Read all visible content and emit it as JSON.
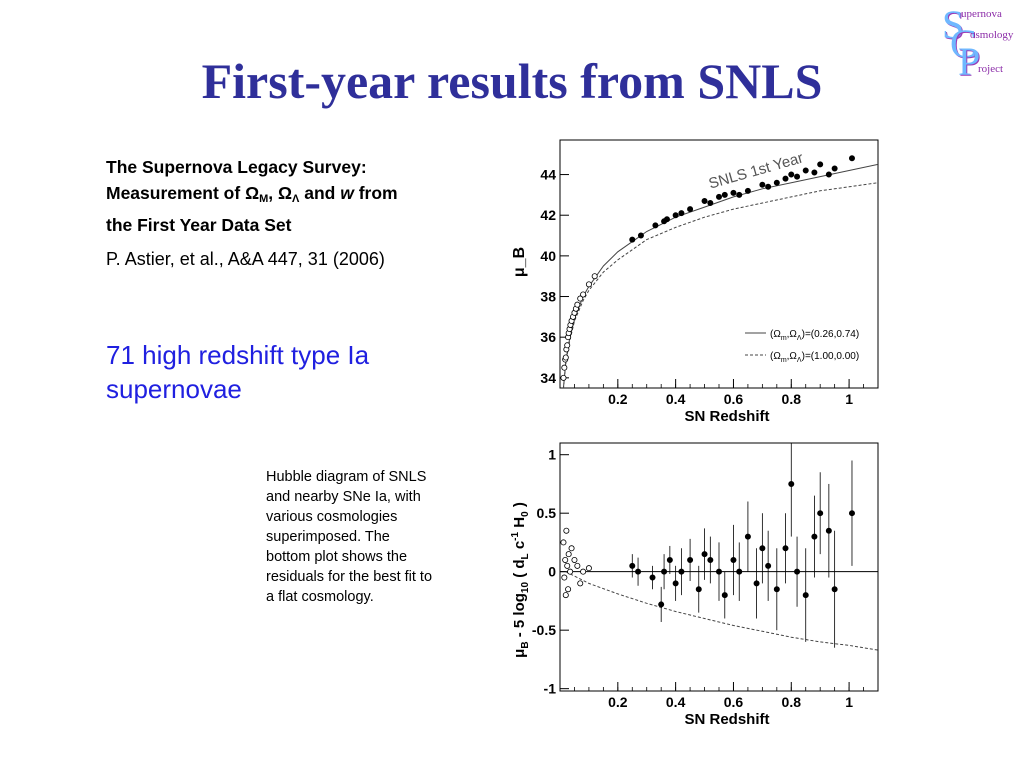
{
  "slide": {
    "title": "First-year results from SNLS",
    "logo": {
      "letters": [
        "S",
        "C",
        "P"
      ],
      "words": [
        "upernova",
        "osmology",
        "roject"
      ]
    },
    "paper_title_lines": [
      "The Supernova Legacy Survey:",
      [
        "Measurement of ",
        "Ω",
        "M",
        ", ",
        "Ω",
        "Λ",
        " and ",
        "w",
        " from"
      ],
      "the First Year Data Set"
    ],
    "citation": "P. Astier, et al., A&A 447, 31 (2006)",
    "highlight": "71 high redshift type Ia supernovae",
    "caption_lines": [
      "Hubble diagram of SNLS",
      "and nearby SNe Ia, with",
      "various cosmologies",
      "superimposed. The",
      "bottom plot shows the",
      "residuals for the best fit to",
      "a flat cosmology."
    ]
  },
  "chart_data": [
    {
      "type": "scatter",
      "title": "",
      "annotation": "SNLS 1st Year",
      "xlabel": "SN Redshift",
      "ylabel": "μ_B",
      "xlim": [
        0,
        1.1
      ],
      "ylim": [
        33.5,
        45.7
      ],
      "xticks": [
        0.2,
        0.4,
        0.6,
        0.8,
        1
      ],
      "xtick_labels": [
        "0.2",
        "0.4",
        "0.6",
        "0.8",
        "1"
      ],
      "yticks": [
        34,
        36,
        38,
        40,
        42,
        44
      ],
      "ytick_labels": [
        "34",
        "36",
        "38",
        "40",
        "42",
        "44"
      ],
      "legend": [
        {
          "label": "(Ωm,ΩΛ)=(0.26,0.74)",
          "style": "solid",
          "Om": 0.26,
          "OL": 0.74
        },
        {
          "label": "(Ωm,ΩΛ)=(1.00,0.00)",
          "style": "dashed",
          "Om": 1.0,
          "OL": 0.0
        }
      ],
      "legend_position": "bottom-right",
      "curves": [
        {
          "name": "(Ωm,ΩΛ)=(0.26,0.74)",
          "style": "solid",
          "x": [
            0.01,
            0.02,
            0.03,
            0.05,
            0.08,
            0.1,
            0.15,
            0.2,
            0.3,
            0.4,
            0.5,
            0.6,
            0.7,
            0.8,
            0.9,
            1.0,
            1.1
          ],
          "y": [
            33.2,
            34.8,
            35.7,
            36.9,
            38.0,
            38.5,
            39.5,
            40.2,
            41.2,
            41.9,
            42.4,
            42.9,
            43.3,
            43.6,
            43.9,
            44.2,
            44.5
          ]
        },
        {
          "name": "(Ωm,ΩΛ)=(1.00,0.00)",
          "style": "dashed",
          "x": [
            0.01,
            0.02,
            0.03,
            0.05,
            0.08,
            0.1,
            0.15,
            0.2,
            0.3,
            0.4,
            0.5,
            0.6,
            0.7,
            0.8,
            0.9,
            1.0,
            1.1
          ],
          "y": [
            33.2,
            34.7,
            35.6,
            36.8,
            37.8,
            38.3,
            39.2,
            39.8,
            40.8,
            41.4,
            41.9,
            42.3,
            42.6,
            42.9,
            43.2,
            43.4,
            43.6
          ]
        }
      ],
      "series": [
        {
          "name": "nearby",
          "marker": "open",
          "x": [
            0.012,
            0.015,
            0.018,
            0.02,
            0.022,
            0.025,
            0.028,
            0.03,
            0.033,
            0.036,
            0.04,
            0.045,
            0.05,
            0.055,
            0.06,
            0.07,
            0.08,
            0.1,
            0.12
          ],
          "y": [
            34.0,
            34.5,
            34.9,
            35.0,
            35.4,
            35.6,
            36.0,
            36.2,
            36.4,
            36.6,
            36.8,
            37.0,
            37.2,
            37.4,
            37.6,
            37.9,
            38.1,
            38.6,
            39.0
          ]
        },
        {
          "name": "SNLS",
          "marker": "filled",
          "x": [
            0.25,
            0.28,
            0.33,
            0.36,
            0.37,
            0.4,
            0.42,
            0.45,
            0.5,
            0.52,
            0.55,
            0.57,
            0.6,
            0.62,
            0.65,
            0.7,
            0.72,
            0.75,
            0.78,
            0.8,
            0.82,
            0.85,
            0.88,
            0.9,
            0.93,
            0.95,
            1.01
          ],
          "y": [
            40.8,
            41.0,
            41.5,
            41.7,
            41.8,
            42.0,
            42.1,
            42.3,
            42.7,
            42.6,
            42.9,
            43.0,
            43.1,
            43.0,
            43.2,
            43.5,
            43.4,
            43.6,
            43.8,
            44.0,
            43.9,
            44.2,
            44.1,
            44.5,
            44.0,
            44.3,
            44.8
          ]
        }
      ]
    },
    {
      "type": "scatter",
      "title": "",
      "xlabel": "SN Redshift",
      "ylabel": "μ_B - 5 log10 ( dL c^-1 H0 )",
      "xlim": [
        0,
        1.1
      ],
      "ylim": [
        -1.02,
        1.1
      ],
      "xticks": [
        0.2,
        0.4,
        0.6,
        0.8,
        1
      ],
      "xtick_labels": [
        "0.2",
        "0.4",
        "0.6",
        "0.8",
        "1"
      ],
      "yticks": [
        -1,
        -0.5,
        0,
        0.5,
        1
      ],
      "ytick_labels": [
        "-1",
        "-0.5",
        "0",
        "0.5",
        "1"
      ],
      "reference_line": 0,
      "curves": [
        {
          "name": "(Ωm,ΩΛ)=(1.00,0.00)",
          "style": "dashed",
          "x": [
            0.02,
            0.1,
            0.2,
            0.3,
            0.4,
            0.5,
            0.6,
            0.7,
            0.8,
            0.9,
            1.0,
            1.1
          ],
          "y": [
            0.0,
            -0.1,
            -0.19,
            -0.27,
            -0.34,
            -0.4,
            -0.46,
            -0.51,
            -0.56,
            -0.6,
            -0.63,
            -0.67
          ]
        }
      ],
      "series": [
        {
          "name": "nearby",
          "marker": "open",
          "x": [
            0.012,
            0.015,
            0.018,
            0.02,
            0.022,
            0.025,
            0.028,
            0.03,
            0.035,
            0.04,
            0.05,
            0.06,
            0.07,
            0.08,
            0.1
          ],
          "y": [
            0.25,
            -0.05,
            0.1,
            -0.2,
            0.35,
            0.05,
            -0.15,
            0.15,
            0.0,
            0.2,
            0.1,
            0.05,
            -0.1,
            0.0,
            0.03
          ]
        },
        {
          "name": "SNLS",
          "marker": "filled",
          "x": [
            0.25,
            0.27,
            0.32,
            0.35,
            0.36,
            0.38,
            0.4,
            0.42,
            0.45,
            0.48,
            0.5,
            0.52,
            0.55,
            0.57,
            0.6,
            0.62,
            0.65,
            0.68,
            0.7,
            0.72,
            0.75,
            0.78,
            0.8,
            0.82,
            0.85,
            0.88,
            0.9,
            0.93,
            0.95,
            1.01
          ],
          "y": [
            0.05,
            0.0,
            -0.05,
            -0.28,
            0.0,
            0.1,
            -0.1,
            0.0,
            0.1,
            -0.15,
            0.15,
            0.1,
            0.0,
            -0.2,
            0.1,
            0.0,
            0.3,
            -0.1,
            0.2,
            0.05,
            -0.15,
            0.2,
            0.75,
            0.0,
            -0.2,
            0.3,
            0.5,
            0.35,
            -0.15,
            0.5
          ],
          "err": [
            0.1,
            0.12,
            0.1,
            0.15,
            0.15,
            0.12,
            0.15,
            0.2,
            0.18,
            0.2,
            0.22,
            0.2,
            0.25,
            0.2,
            0.3,
            0.25,
            0.3,
            0.3,
            0.3,
            0.3,
            0.35,
            0.3,
            0.45,
            0.3,
            0.4,
            0.35,
            0.35,
            0.4,
            0.5,
            0.45
          ]
        }
      ]
    }
  ]
}
